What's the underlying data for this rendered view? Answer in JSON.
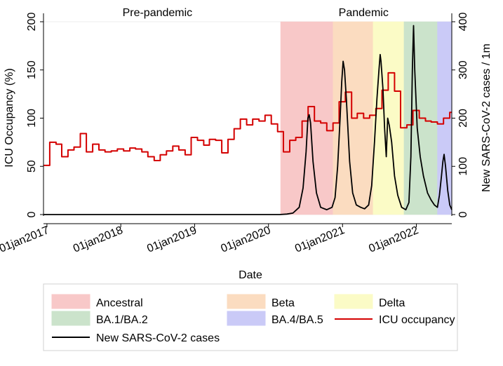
{
  "chart_data": {
    "type": "line",
    "xlabel": "Date",
    "ylabel_left": "ICU Occupancy (%)",
    "ylabel_right": "New SARS-CoV-2 cases / 1m",
    "ylim_left": [
      0,
      200
    ],
    "ylim_right": [
      0,
      400
    ],
    "yticks_left": [
      "0",
      "50",
      "100",
      "150",
      "200"
    ],
    "yticks_right": [
      "0",
      "100",
      "200",
      "300",
      "400"
    ],
    "x_range": [
      "2016-12-15",
      "2022-06-25"
    ],
    "xticks": [
      {
        "date": "2017-01-01",
        "label": "01jan2017"
      },
      {
        "date": "2018-01-01",
        "label": "01jan2018"
      },
      {
        "date": "2019-01-01",
        "label": "01jan2019"
      },
      {
        "date": "2020-01-01",
        "label": "01jan2020"
      },
      {
        "date": "2021-01-01",
        "label": "01jan2021"
      },
      {
        "date": "2022-01-01",
        "label": "01jan2022"
      }
    ],
    "grid": false,
    "period_labels": [
      {
        "text": "Pre-pandemic",
        "date": "2018-07-01"
      },
      {
        "text": "Pandemic",
        "date": "2021-04-15"
      }
    ],
    "bands": [
      {
        "name": "Ancestral",
        "start": "2020-03-01",
        "end": "2020-11-15",
        "color": "#f8c8c8"
      },
      {
        "name": "Beta",
        "start": "2020-11-15",
        "end": "2021-06-01",
        "color": "#fbdcc0"
      },
      {
        "name": "Delta",
        "start": "2021-06-01",
        "end": "2021-11-01",
        "color": "#fbfbc6"
      },
      {
        "name": "BA.1/BA.2",
        "start": "2021-11-01",
        "end": "2022-04-15",
        "color": "#cbe3cb"
      },
      {
        "name": "BA.4/BA.5",
        "start": "2022-04-15",
        "end": "2022-06-25",
        "color": "#cacaf7"
      }
    ],
    "series": [
      {
        "name": "ICU occupancy",
        "axis": "left",
        "color": "#d40000",
        "step": true,
        "points": [
          [
            "2016-12-15",
            51
          ],
          [
            "2017-01-15",
            75
          ],
          [
            "2017-02-15",
            73
          ],
          [
            "2017-03-15",
            60
          ],
          [
            "2017-04-15",
            67
          ],
          [
            "2017-05-15",
            70
          ],
          [
            "2017-06-15",
            84
          ],
          [
            "2017-07-15",
            65
          ],
          [
            "2017-08-15",
            73
          ],
          [
            "2017-09-15",
            67
          ],
          [
            "2017-10-15",
            65
          ],
          [
            "2017-11-15",
            66
          ],
          [
            "2017-12-15",
            68
          ],
          [
            "2018-01-15",
            66
          ],
          [
            "2018-02-15",
            69
          ],
          [
            "2018-03-15",
            68
          ],
          [
            "2018-04-15",
            65
          ],
          [
            "2018-05-15",
            60
          ],
          [
            "2018-06-15",
            56
          ],
          [
            "2018-07-15",
            62
          ],
          [
            "2018-08-15",
            66
          ],
          [
            "2018-09-15",
            71
          ],
          [
            "2018-10-15",
            67
          ],
          [
            "2018-11-15",
            62
          ],
          [
            "2018-12-15",
            80
          ],
          [
            "2019-01-15",
            77
          ],
          [
            "2019-02-15",
            72
          ],
          [
            "2019-03-15",
            78
          ],
          [
            "2019-04-15",
            77
          ],
          [
            "2019-05-15",
            64
          ],
          [
            "2019-06-15",
            78
          ],
          [
            "2019-07-15",
            89
          ],
          [
            "2019-08-15",
            99
          ],
          [
            "2019-09-15",
            93
          ],
          [
            "2019-10-15",
            99
          ],
          [
            "2019-11-15",
            97
          ],
          [
            "2019-12-15",
            103
          ],
          [
            "2020-01-15",
            94
          ],
          [
            "2020-02-15",
            86
          ],
          [
            "2020-03-15",
            65
          ],
          [
            "2020-04-15",
            77
          ],
          [
            "2020-05-15",
            80
          ],
          [
            "2020-06-15",
            97
          ],
          [
            "2020-07-15",
            112
          ],
          [
            "2020-08-15",
            97
          ],
          [
            "2020-09-15",
            95
          ],
          [
            "2020-10-15",
            87
          ],
          [
            "2020-11-15",
            95
          ],
          [
            "2020-12-15",
            117
          ],
          [
            "2021-01-15",
            127
          ],
          [
            "2021-02-15",
            100
          ],
          [
            "2021-03-15",
            105
          ],
          [
            "2021-04-15",
            100
          ],
          [
            "2021-05-15",
            103
          ],
          [
            "2021-06-15",
            110
          ],
          [
            "2021-07-15",
            129
          ],
          [
            "2021-08-15",
            147
          ],
          [
            "2021-09-15",
            128
          ],
          [
            "2021-10-15",
            90
          ],
          [
            "2021-11-15",
            93
          ],
          [
            "2021-12-15",
            108
          ],
          [
            "2022-01-15",
            100
          ],
          [
            "2022-02-15",
            97
          ],
          [
            "2022-03-15",
            96
          ],
          [
            "2022-04-15",
            94
          ],
          [
            "2022-05-15",
            100
          ],
          [
            "2022-06-15",
            106
          ],
          [
            "2022-06-25",
            106
          ]
        ]
      },
      {
        "name": "New SARS-CoV-2 cases",
        "axis": "right",
        "color": "#000000",
        "step": false,
        "points": [
          [
            "2016-12-15",
            0
          ],
          [
            "2020-02-25",
            0
          ],
          [
            "2020-04-01",
            1
          ],
          [
            "2020-05-01",
            3
          ],
          [
            "2020-06-01",
            15
          ],
          [
            "2020-06-20",
            55
          ],
          [
            "2020-07-05",
            130
          ],
          [
            "2020-07-14",
            200
          ],
          [
            "2020-07-20",
            207
          ],
          [
            "2020-07-27",
            190
          ],
          [
            "2020-08-08",
            110
          ],
          [
            "2020-08-25",
            45
          ],
          [
            "2020-09-15",
            15
          ],
          [
            "2020-10-15",
            10
          ],
          [
            "2020-11-10",
            15
          ],
          [
            "2020-11-25",
            35
          ],
          [
            "2020-12-08",
            100
          ],
          [
            "2020-12-20",
            200
          ],
          [
            "2020-12-28",
            275
          ],
          [
            "2021-01-04",
            318
          ],
          [
            "2021-01-11",
            300
          ],
          [
            "2021-01-20",
            240
          ],
          [
            "2021-02-05",
            110
          ],
          [
            "2021-02-20",
            45
          ],
          [
            "2021-03-10",
            20
          ],
          [
            "2021-04-01",
            15
          ],
          [
            "2021-04-20",
            12
          ],
          [
            "2021-05-10",
            20
          ],
          [
            "2021-05-25",
            60
          ],
          [
            "2021-06-08",
            150
          ],
          [
            "2021-06-20",
            240
          ],
          [
            "2021-06-30",
            300
          ],
          [
            "2021-07-06",
            332
          ],
          [
            "2021-07-10",
            318
          ],
          [
            "2021-07-20",
            260
          ],
          [
            "2021-07-28",
            180
          ],
          [
            "2021-08-05",
            120
          ],
          [
            "2021-08-12",
            200
          ],
          [
            "2021-08-20",
            185
          ],
          [
            "2021-09-01",
            150
          ],
          [
            "2021-09-15",
            80
          ],
          [
            "2021-10-01",
            40
          ],
          [
            "2021-10-20",
            15
          ],
          [
            "2021-11-10",
            10
          ],
          [
            "2021-11-25",
            25
          ],
          [
            "2021-12-05",
            120
          ],
          [
            "2021-12-12",
            300
          ],
          [
            "2021-12-18",
            392
          ],
          [
            "2021-12-24",
            300
          ],
          [
            "2022-01-05",
            180
          ],
          [
            "2022-01-20",
            120
          ],
          [
            "2022-02-05",
            80
          ],
          [
            "2022-02-25",
            45
          ],
          [
            "2022-03-15",
            30
          ],
          [
            "2022-03-31",
            20
          ],
          [
            "2022-04-15",
            15
          ],
          [
            "2022-04-25",
            40
          ],
          [
            "2022-05-05",
            80
          ],
          [
            "2022-05-12",
            110
          ],
          [
            "2022-05-18",
            125
          ],
          [
            "2022-05-25",
            100
          ],
          [
            "2022-06-05",
            50
          ],
          [
            "2022-06-15",
            20
          ],
          [
            "2022-06-25",
            10
          ]
        ]
      }
    ],
    "legend": {
      "position": "bottom",
      "entries": [
        {
          "label": "Ancestral",
          "kind": "band",
          "color": "#f8c8c8"
        },
        {
          "label": "Beta",
          "kind": "band",
          "color": "#fbdcc0"
        },
        {
          "label": "Delta",
          "kind": "band",
          "color": "#fbfbc6"
        },
        {
          "label": "BA.1/BA.2",
          "kind": "band",
          "color": "#cbe3cb"
        },
        {
          "label": "BA.4/BA.5",
          "kind": "band",
          "color": "#cacaf7"
        },
        {
          "label": "ICU occupancy",
          "kind": "line",
          "color": "#d40000"
        },
        {
          "label": "New SARS-CoV-2 cases",
          "kind": "line",
          "color": "#000000"
        }
      ]
    }
  }
}
